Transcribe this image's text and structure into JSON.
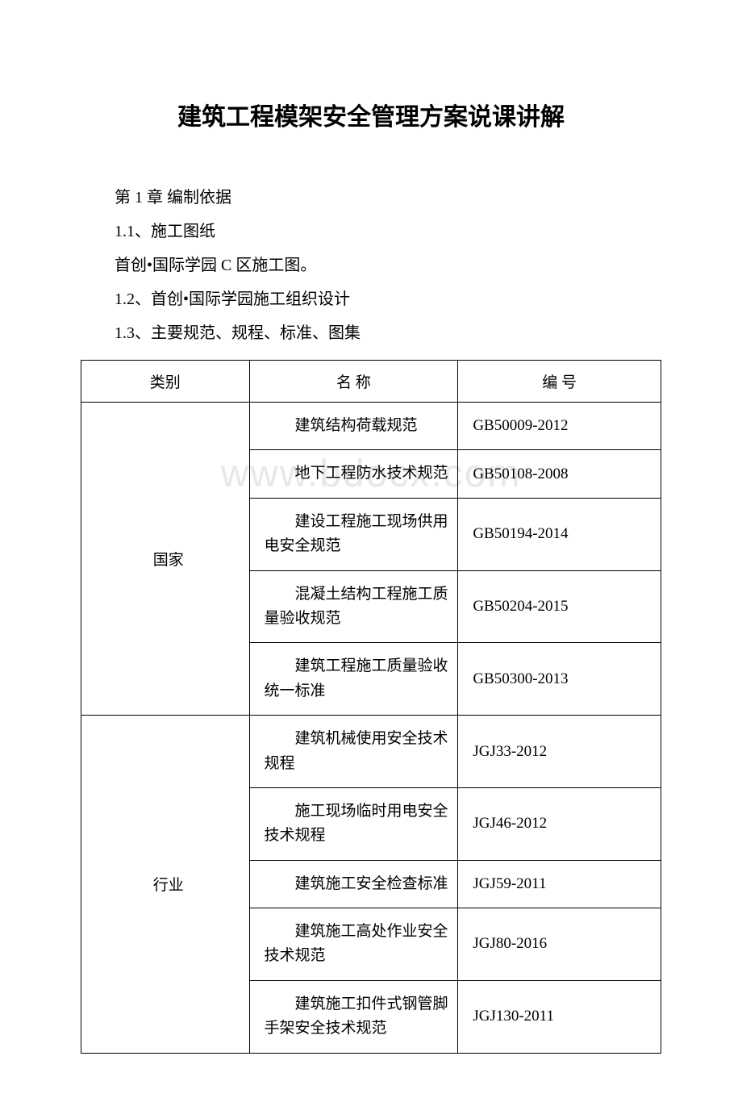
{
  "title": "建筑工程模架安全管理方案说课讲解",
  "section_heading": "第 1 章 编制依据",
  "para_1_1": "1.1、施工图纸",
  "para_1_1_content": "首创•国际学园 C 区施工图。",
  "para_1_2": "1.2、首创•国际学园施工组织设计",
  "para_1_3": "1.3、主要规范、规程、标准、图集",
  "watermark": "www.bdocx.com",
  "table": {
    "headers": {
      "category": "类别",
      "name": "名 称",
      "code": "编 号"
    },
    "groups": [
      {
        "category": "国家",
        "rows": [
          {
            "name": "建筑结构荷载规范",
            "code": "GB50009-2012"
          },
          {
            "name": "地下工程防水技术规范",
            "code": "GB50108-2008"
          },
          {
            "name": "建设工程施工现场供用电安全规范",
            "code": "GB50194-2014"
          },
          {
            "name": "混凝土结构工程施工质量验收规范",
            "code": "GB50204-2015"
          },
          {
            "name": "建筑工程施工质量验收统一标准",
            "code": "GB50300-2013"
          }
        ]
      },
      {
        "category": "行业",
        "rows": [
          {
            "name": "建筑机械使用安全技术规程",
            "code": "JGJ33-2012"
          },
          {
            "name": "施工现场临时用电安全技术规程",
            "code": "JGJ46-2012"
          },
          {
            "name": "建筑施工安全检查标准",
            "code": "JGJ59-2011"
          },
          {
            "name": "建筑施工高处作业安全技术规范",
            "code": "JGJ80-2016"
          },
          {
            "name": "建筑施工扣件式钢管脚手架安全技术规范",
            "code": "JGJ130-2011"
          }
        ]
      }
    ]
  }
}
